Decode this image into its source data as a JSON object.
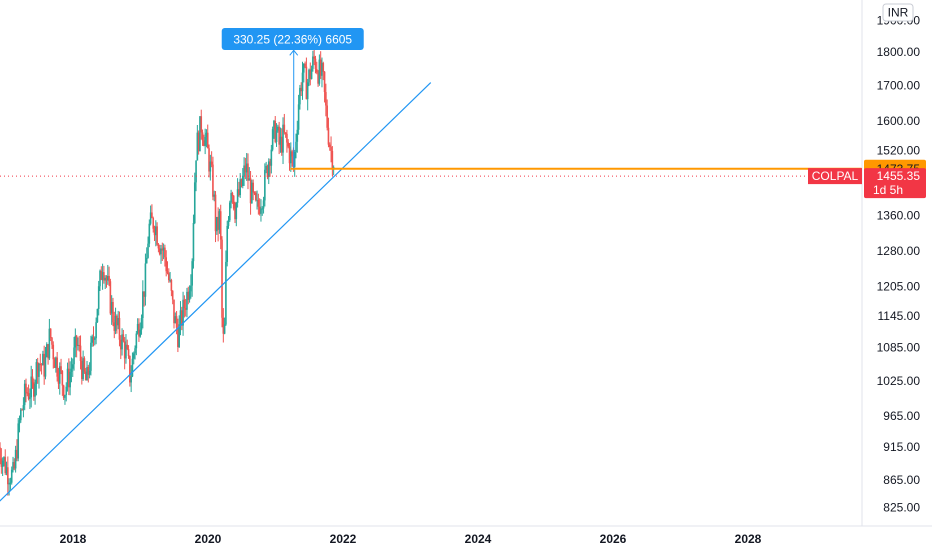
{
  "chart_data": {
    "type": "candlestick",
    "symbol": "COLPAL",
    "currency": "INR",
    "y_scale": "log",
    "ylim": [
      805,
      1950
    ],
    "y_ticks": [
      "1900.00",
      "1800.00",
      "1700.00",
      "1600.00",
      "1520.00",
      "1360.00",
      "1280.00",
      "1205.00",
      "1145.00",
      "1085.00",
      "1025.00",
      "965.00",
      "915.00",
      "865.00",
      "825.00"
    ],
    "x_ticks": [
      "2018",
      "2020",
      "2022",
      "2024",
      "2026",
      "2028"
    ],
    "xlim": [
      2016.9,
      2029.9
    ],
    "last_price": {
      "label": "COLPAL",
      "value": "1455.35",
      "countdown": "1d 5h",
      "color": "#f23645"
    },
    "horizontal_line": {
      "value": "1473.75",
      "color": "#ff9800",
      "x_start": 2021.22
    },
    "trendline": {
      "color": "#2196f3",
      "points": [
        [
          2016.9,
          833
        ],
        [
          2023.3,
          1708
        ]
      ]
    },
    "measure": {
      "text": "330.25 (22.36%) 6605",
      "color": "#2196f3",
      "x": 2021.27,
      "from": 1475,
      "to": 1805
    },
    "colors": {
      "up": "#26a69a",
      "down": "#ef5350",
      "grid": "#ffffff",
      "axis": "#e0e3eb"
    },
    "anchors": [
      [
        2016.9,
        915
      ],
      [
        2017.02,
        880
      ],
      [
        2017.12,
        870
      ],
      [
        2017.22,
        965
      ],
      [
        2017.3,
        1005
      ],
      [
        2017.4,
        1010
      ],
      [
        2017.48,
        1060
      ],
      [
        2017.58,
        1050
      ],
      [
        2017.66,
        1110
      ],
      [
        2017.72,
        1070
      ],
      [
        2017.8,
        1040
      ],
      [
        2017.88,
        1010
      ],
      [
        2017.98,
        1050
      ],
      [
        2018.06,
        1095
      ],
      [
        2018.15,
        1040
      ],
      [
        2018.2,
        1020
      ],
      [
        2018.3,
        1100
      ],
      [
        2018.38,
        1190
      ],
      [
        2018.44,
        1260
      ],
      [
        2018.52,
        1200
      ],
      [
        2018.6,
        1140
      ],
      [
        2018.7,
        1105
      ],
      [
        2018.78,
        1080
      ],
      [
        2018.85,
        1030
      ],
      [
        2018.92,
        1095
      ],
      [
        2019.0,
        1150
      ],
      [
        2019.08,
        1230
      ],
      [
        2019.12,
        1330
      ],
      [
        2019.2,
        1350
      ],
      [
        2019.28,
        1300
      ],
      [
        2019.36,
        1270
      ],
      [
        2019.44,
        1200
      ],
      [
        2019.5,
        1140
      ],
      [
        2019.56,
        1110
      ],
      [
        2019.64,
        1160
      ],
      [
        2019.7,
        1195
      ],
      [
        2019.76,
        1250
      ],
      [
        2019.82,
        1520
      ],
      [
        2019.9,
        1590
      ],
      [
        2019.96,
        1550
      ],
      [
        2020.02,
        1490
      ],
      [
        2020.08,
        1420
      ],
      [
        2020.12,
        1320
      ],
      [
        2020.18,
        1360
      ],
      [
        2020.21,
        1120
      ],
      [
        2020.24,
        1080
      ],
      [
        2020.28,
        1330
      ],
      [
        2020.34,
        1440
      ],
      [
        2020.4,
        1380
      ],
      [
        2020.48,
        1420
      ],
      [
        2020.56,
        1480
      ],
      [
        2020.64,
        1410
      ],
      [
        2020.72,
        1370
      ],
      [
        2020.82,
        1420
      ],
      [
        2020.92,
        1520
      ],
      [
        2021.0,
        1580
      ],
      [
        2021.06,
        1530
      ],
      [
        2021.12,
        1560
      ],
      [
        2021.2,
        1520
      ],
      [
        2021.27,
        1475
      ],
      [
        2021.34,
        1650
      ],
      [
        2021.4,
        1740
      ],
      [
        2021.46,
        1700
      ],
      [
        2021.52,
        1740
      ],
      [
        2021.58,
        1780
      ],
      [
        2021.64,
        1740
      ],
      [
        2021.7,
        1720
      ],
      [
        2021.76,
        1600
      ],
      [
        2021.82,
        1520
      ],
      [
        2021.86,
        1500
      ],
      [
        2021.88,
        1455.35
      ]
    ]
  }
}
